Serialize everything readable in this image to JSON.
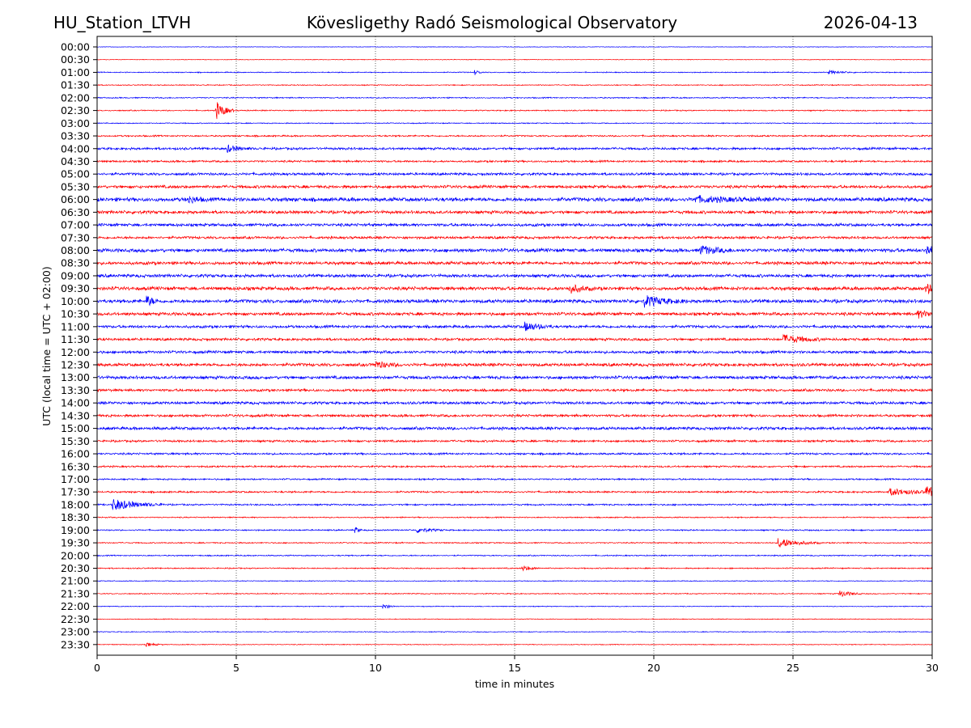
{
  "header": {
    "station": "HU_Station_LTVH",
    "observatory": "Kövesligethy Radó Seismological Observatory",
    "date": "2026-04-13"
  },
  "chart_data": {
    "type": "line",
    "title": "Kövesligethy Radó Seismological Observatory",
    "xlabel": "time in minutes",
    "ylabel": "UTC (local time = UTC + 02:00)",
    "xlim": [
      0,
      30
    ],
    "xticks": [
      "0",
      "5",
      "10",
      "15",
      "20",
      "25",
      "30"
    ],
    "grid": "vertical dotted at 5-minute intervals",
    "row_labels": [
      "00:00",
      "00:30",
      "01:00",
      "01:30",
      "02:00",
      "02:30",
      "03:00",
      "03:30",
      "04:00",
      "04:30",
      "05:00",
      "05:30",
      "06:00",
      "06:30",
      "07:00",
      "07:30",
      "08:00",
      "08:30",
      "09:00",
      "09:30",
      "10:00",
      "10:30",
      "11:00",
      "11:30",
      "12:00",
      "12:30",
      "13:00",
      "13:30",
      "14:00",
      "14:30",
      "15:00",
      "15:30",
      "16:00",
      "16:30",
      "17:00",
      "17:30",
      "18:00",
      "18:30",
      "19:00",
      "19:30",
      "20:00",
      "20:30",
      "21:00",
      "21:30",
      "22:00",
      "22:30",
      "23:00",
      "23:30"
    ],
    "row_colors": [
      "#0000ff",
      "#ff0000"
    ],
    "noise_level": [
      0.3,
      0.3,
      0.5,
      0.5,
      0.6,
      0.6,
      0.5,
      0.8,
      1.2,
      1.0,
      1.3,
      1.5,
      2.0,
      1.6,
      1.5,
      1.3,
      1.8,
      1.6,
      1.6,
      1.8,
      1.8,
      1.6,
      1.4,
      1.3,
      1.4,
      1.6,
      1.6,
      1.3,
      1.4,
      1.3,
      1.5,
      1.1,
      1.0,
      0.9,
      0.8,
      0.9,
      0.8,
      0.6,
      0.7,
      0.6,
      0.6,
      0.6,
      0.4,
      0.5,
      0.4,
      0.4,
      0.4,
      0.4
    ],
    "events": [
      {
        "row": 2,
        "minute": 13.6,
        "amplitude": 3,
        "duration": 0.2
      },
      {
        "row": 2,
        "minute": 26.3,
        "amplitude": 2,
        "duration": 1.0
      },
      {
        "row": 5,
        "minute": 4.3,
        "amplitude": 10,
        "duration": 0.6
      },
      {
        "row": 8,
        "minute": 4.7,
        "amplitude": 4,
        "duration": 0.8
      },
      {
        "row": 12,
        "minute": 3.3,
        "amplitude": 4,
        "duration": 0.6
      },
      {
        "row": 12,
        "minute": 21.5,
        "amplitude": 3,
        "duration": 3
      },
      {
        "row": 16,
        "minute": 21.7,
        "amplitude": 5,
        "duration": 1.2
      },
      {
        "row": 16,
        "minute": 29.8,
        "amplitude": 6,
        "duration": 0.6
      },
      {
        "row": 19,
        "minute": 17,
        "amplitude": 5,
        "duration": 0.8
      },
      {
        "row": 19,
        "minute": 29.8,
        "amplitude": 6,
        "duration": 0.5
      },
      {
        "row": 20,
        "minute": 1.8,
        "amplitude": 6,
        "duration": 0.4
      },
      {
        "row": 20,
        "minute": 19.7,
        "amplitude": 6,
        "duration": 1.5
      },
      {
        "row": 21,
        "minute": 29.5,
        "amplitude": 4,
        "duration": 1
      },
      {
        "row": 22,
        "minute": 15.4,
        "amplitude": 5,
        "duration": 1
      },
      {
        "row": 23,
        "minute": 24.7,
        "amplitude": 5,
        "duration": 1.5
      },
      {
        "row": 25,
        "minute": 10,
        "amplitude": 4,
        "duration": 1
      },
      {
        "row": 35,
        "minute": 28.5,
        "amplitude": 4,
        "duration": 2
      },
      {
        "row": 35,
        "minute": 29.8,
        "amplitude": 6,
        "duration": 1
      },
      {
        "row": 36,
        "minute": 0.6,
        "amplitude": 7,
        "duration": 1.8
      },
      {
        "row": 38,
        "minute": 9.3,
        "amplitude": 3,
        "duration": 0.2
      },
      {
        "row": 38,
        "minute": 11.5,
        "amplitude": 3,
        "duration": 1
      },
      {
        "row": 39,
        "minute": 24.5,
        "amplitude": 6,
        "duration": 1.5
      },
      {
        "row": 41,
        "minute": 15.3,
        "amplitude": 3,
        "duration": 0.6
      },
      {
        "row": 43,
        "minute": 26.7,
        "amplitude": 4,
        "duration": 0.8
      },
      {
        "row": 44,
        "minute": 10.3,
        "amplitude": 3,
        "duration": 0.4
      },
      {
        "row": 47,
        "minute": 1.8,
        "amplitude": 2,
        "duration": 0.6
      }
    ]
  }
}
